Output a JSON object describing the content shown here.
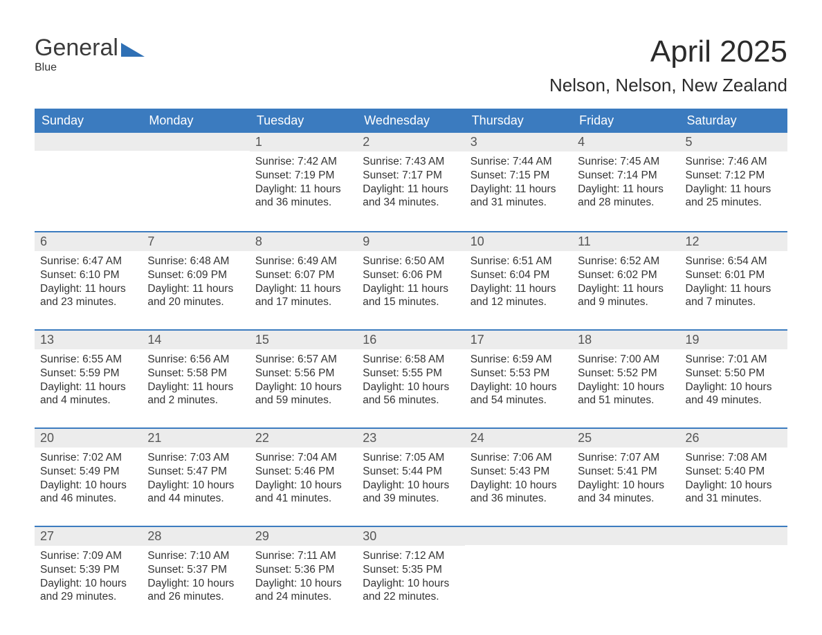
{
  "brand": {
    "word1": "General",
    "word2": "Blue"
  },
  "title": "April 2025",
  "subtitle": "Nelson, Nelson, New Zealand",
  "colors": {
    "header_bg": "#3b7bbf",
    "header_text": "#ffffff",
    "daynum_bg": "#ececec",
    "daynum_text": "#555555",
    "body_text": "#333333",
    "rule": "#3b7bbf",
    "brand_accent": "#2f70b5",
    "page_bg": "#ffffff"
  },
  "typography": {
    "title_fontsize": 44,
    "subtitle_fontsize": 26,
    "weekday_fontsize": 18,
    "daynum_fontsize": 18,
    "body_fontsize": 15.5,
    "font_family": "Arial"
  },
  "layout": {
    "columns": 7,
    "rows": 5,
    "first_weekday": "Sunday"
  },
  "weekdays": [
    "Sunday",
    "Monday",
    "Tuesday",
    "Wednesday",
    "Thursday",
    "Friday",
    "Saturday"
  ],
  "weeks": [
    [
      null,
      null,
      {
        "n": "1",
        "sunrise": "Sunrise: 7:42 AM",
        "sunset": "Sunset: 7:19 PM",
        "d1": "Daylight: 11 hours",
        "d2": "and 36 minutes."
      },
      {
        "n": "2",
        "sunrise": "Sunrise: 7:43 AM",
        "sunset": "Sunset: 7:17 PM",
        "d1": "Daylight: 11 hours",
        "d2": "and 34 minutes."
      },
      {
        "n": "3",
        "sunrise": "Sunrise: 7:44 AM",
        "sunset": "Sunset: 7:15 PM",
        "d1": "Daylight: 11 hours",
        "d2": "and 31 minutes."
      },
      {
        "n": "4",
        "sunrise": "Sunrise: 7:45 AM",
        "sunset": "Sunset: 7:14 PM",
        "d1": "Daylight: 11 hours",
        "d2": "and 28 minutes."
      },
      {
        "n": "5",
        "sunrise": "Sunrise: 7:46 AM",
        "sunset": "Sunset: 7:12 PM",
        "d1": "Daylight: 11 hours",
        "d2": "and 25 minutes."
      }
    ],
    [
      {
        "n": "6",
        "sunrise": "Sunrise: 6:47 AM",
        "sunset": "Sunset: 6:10 PM",
        "d1": "Daylight: 11 hours",
        "d2": "and 23 minutes."
      },
      {
        "n": "7",
        "sunrise": "Sunrise: 6:48 AM",
        "sunset": "Sunset: 6:09 PM",
        "d1": "Daylight: 11 hours",
        "d2": "and 20 minutes."
      },
      {
        "n": "8",
        "sunrise": "Sunrise: 6:49 AM",
        "sunset": "Sunset: 6:07 PM",
        "d1": "Daylight: 11 hours",
        "d2": "and 17 minutes."
      },
      {
        "n": "9",
        "sunrise": "Sunrise: 6:50 AM",
        "sunset": "Sunset: 6:06 PM",
        "d1": "Daylight: 11 hours",
        "d2": "and 15 minutes."
      },
      {
        "n": "10",
        "sunrise": "Sunrise: 6:51 AM",
        "sunset": "Sunset: 6:04 PM",
        "d1": "Daylight: 11 hours",
        "d2": "and 12 minutes."
      },
      {
        "n": "11",
        "sunrise": "Sunrise: 6:52 AM",
        "sunset": "Sunset: 6:02 PM",
        "d1": "Daylight: 11 hours",
        "d2": "and 9 minutes."
      },
      {
        "n": "12",
        "sunrise": "Sunrise: 6:54 AM",
        "sunset": "Sunset: 6:01 PM",
        "d1": "Daylight: 11 hours",
        "d2": "and 7 minutes."
      }
    ],
    [
      {
        "n": "13",
        "sunrise": "Sunrise: 6:55 AM",
        "sunset": "Sunset: 5:59 PM",
        "d1": "Daylight: 11 hours",
        "d2": "and 4 minutes."
      },
      {
        "n": "14",
        "sunrise": "Sunrise: 6:56 AM",
        "sunset": "Sunset: 5:58 PM",
        "d1": "Daylight: 11 hours",
        "d2": "and 2 minutes."
      },
      {
        "n": "15",
        "sunrise": "Sunrise: 6:57 AM",
        "sunset": "Sunset: 5:56 PM",
        "d1": "Daylight: 10 hours",
        "d2": "and 59 minutes."
      },
      {
        "n": "16",
        "sunrise": "Sunrise: 6:58 AM",
        "sunset": "Sunset: 5:55 PM",
        "d1": "Daylight: 10 hours",
        "d2": "and 56 minutes."
      },
      {
        "n": "17",
        "sunrise": "Sunrise: 6:59 AM",
        "sunset": "Sunset: 5:53 PM",
        "d1": "Daylight: 10 hours",
        "d2": "and 54 minutes."
      },
      {
        "n": "18",
        "sunrise": "Sunrise: 7:00 AM",
        "sunset": "Sunset: 5:52 PM",
        "d1": "Daylight: 10 hours",
        "d2": "and 51 minutes."
      },
      {
        "n": "19",
        "sunrise": "Sunrise: 7:01 AM",
        "sunset": "Sunset: 5:50 PM",
        "d1": "Daylight: 10 hours",
        "d2": "and 49 minutes."
      }
    ],
    [
      {
        "n": "20",
        "sunrise": "Sunrise: 7:02 AM",
        "sunset": "Sunset: 5:49 PM",
        "d1": "Daylight: 10 hours",
        "d2": "and 46 minutes."
      },
      {
        "n": "21",
        "sunrise": "Sunrise: 7:03 AM",
        "sunset": "Sunset: 5:47 PM",
        "d1": "Daylight: 10 hours",
        "d2": "and 44 minutes."
      },
      {
        "n": "22",
        "sunrise": "Sunrise: 7:04 AM",
        "sunset": "Sunset: 5:46 PM",
        "d1": "Daylight: 10 hours",
        "d2": "and 41 minutes."
      },
      {
        "n": "23",
        "sunrise": "Sunrise: 7:05 AM",
        "sunset": "Sunset: 5:44 PM",
        "d1": "Daylight: 10 hours",
        "d2": "and 39 minutes."
      },
      {
        "n": "24",
        "sunrise": "Sunrise: 7:06 AM",
        "sunset": "Sunset: 5:43 PM",
        "d1": "Daylight: 10 hours",
        "d2": "and 36 minutes."
      },
      {
        "n": "25",
        "sunrise": "Sunrise: 7:07 AM",
        "sunset": "Sunset: 5:41 PM",
        "d1": "Daylight: 10 hours",
        "d2": "and 34 minutes."
      },
      {
        "n": "26",
        "sunrise": "Sunrise: 7:08 AM",
        "sunset": "Sunset: 5:40 PM",
        "d1": "Daylight: 10 hours",
        "d2": "and 31 minutes."
      }
    ],
    [
      {
        "n": "27",
        "sunrise": "Sunrise: 7:09 AM",
        "sunset": "Sunset: 5:39 PM",
        "d1": "Daylight: 10 hours",
        "d2": "and 29 minutes."
      },
      {
        "n": "28",
        "sunrise": "Sunrise: 7:10 AM",
        "sunset": "Sunset: 5:37 PM",
        "d1": "Daylight: 10 hours",
        "d2": "and 26 minutes."
      },
      {
        "n": "29",
        "sunrise": "Sunrise: 7:11 AM",
        "sunset": "Sunset: 5:36 PM",
        "d1": "Daylight: 10 hours",
        "d2": "and 24 minutes."
      },
      {
        "n": "30",
        "sunrise": "Sunrise: 7:12 AM",
        "sunset": "Sunset: 5:35 PM",
        "d1": "Daylight: 10 hours",
        "d2": "and 22 minutes."
      },
      null,
      null,
      null
    ]
  ]
}
